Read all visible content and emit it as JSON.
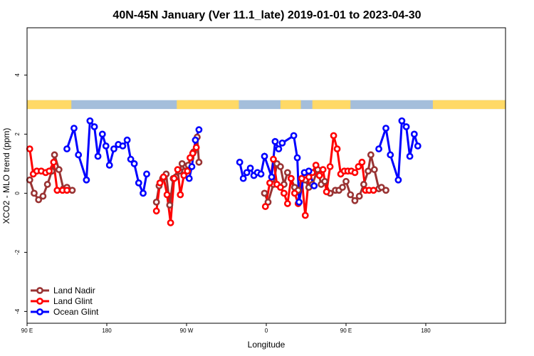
{
  "chart_data": {
    "type": "line",
    "title": "40N-45N January (Ver 11.1_late)   2019-01-01 to 2023-04-30",
    "xlabel": "Longitude",
    "ylabel": "XCO2 - MLO trend (ppm)",
    "xlim": [
      90,
      630
    ],
    "ylim": [
      -4.4,
      5.6
    ],
    "x_ticks": [
      {
        "value": 90,
        "label": "90 E"
      },
      {
        "value": 180,
        "label": "180"
      },
      {
        "value": 270,
        "label": "90 W"
      },
      {
        "value": 360,
        "label": "0"
      },
      {
        "value": 450,
        "label": "90 E"
      },
      {
        "value": 540,
        "label": "180"
      }
    ],
    "y_ticks": [
      -4,
      -2,
      0,
      2,
      4
    ],
    "grid": false,
    "legend_position": "bottom-left",
    "land_ocean_strip": {
      "y_range": [
        2.85,
        3.15
      ],
      "land_color": "#ffd966",
      "ocean_color": "#a4bedb",
      "land_segments": [
        [
          90,
          140
        ],
        [
          259,
          329
        ],
        [
          376,
          399
        ],
        [
          412,
          455
        ],
        [
          548,
          630
        ]
      ]
    },
    "series": [
      {
        "name": "Land Nadir",
        "color": "#993333",
        "points": [
          [
            93,
            0.45
          ],
          [
            98,
            0.0
          ],
          [
            103,
            -0.22
          ],
          [
            108,
            -0.1
          ],
          [
            113,
            0.3
          ],
          [
            118,
            0.75
          ],
          [
            121,
            1.3
          ],
          [
            126,
            0.8
          ],
          [
            131,
            0.15
          ],
          [
            135,
            0.2
          ],
          [
            141,
            0.1
          ],
          [
            236,
            -0.3
          ],
          [
            239,
            0.25
          ],
          [
            243,
            0.5
          ],
          [
            247,
            0.65
          ],
          [
            251,
            -0.4
          ],
          [
            255,
            0.5
          ],
          [
            258,
            0.55
          ],
          [
            262,
            0.75
          ],
          [
            265,
            1.0
          ],
          [
            268,
            0.75
          ],
          [
            272,
            0.95
          ],
          [
            275,
            1.2
          ],
          [
            278,
            1.4
          ],
          [
            282,
            1.9
          ],
          [
            284,
            1.05
          ],
          [
            358,
            0.0
          ],
          [
            362,
            -0.3
          ],
          [
            368,
            0.3
          ],
          [
            372,
            1.0
          ],
          [
            376,
            0.9
          ],
          [
            380,
            0.3
          ],
          [
            384,
            0.7
          ],
          [
            388,
            0.5
          ],
          [
            392,
            0.2
          ],
          [
            396,
            0.1
          ],
          [
            400,
            0.5
          ],
          [
            404,
            0.45
          ],
          [
            408,
            0.2
          ],
          [
            412,
            0.3
          ],
          [
            418,
            0.8
          ],
          [
            422,
            0.3
          ],
          [
            426,
            0.4
          ],
          [
            432,
            0.0
          ],
          [
            438,
            0.1
          ],
          [
            442,
            0.1
          ],
          [
            446,
            0.2
          ],
          [
            450,
            0.4
          ],
          [
            455,
            -0.05
          ],
          [
            460,
            -0.25
          ],
          [
            465,
            -0.1
          ],
          [
            470,
            0.3
          ],
          [
            475,
            0.75
          ],
          [
            478,
            1.3
          ],
          [
            482,
            0.8
          ],
          [
            487,
            0.15
          ],
          [
            490,
            0.2
          ],
          [
            495,
            0.1
          ]
        ]
      },
      {
        "name": "Land Glint",
        "color": "#ff0000",
        "points": [
          [
            93,
            1.5
          ],
          [
            97,
            0.65
          ],
          [
            101,
            0.75
          ],
          [
            106,
            0.75
          ],
          [
            111,
            0.7
          ],
          [
            115,
            0.75
          ],
          [
            120,
            1.05
          ],
          [
            124,
            0.1
          ],
          [
            130,
            0.1
          ],
          [
            135,
            0.1
          ],
          [
            236,
            -0.6
          ],
          [
            240,
            0.35
          ],
          [
            244,
            0.55
          ],
          [
            248,
            -0.05
          ],
          [
            252,
            -1.0
          ],
          [
            256,
            0.5
          ],
          [
            260,
            0.8
          ],
          [
            263,
            -0.05
          ],
          [
            267,
            0.6
          ],
          [
            271,
            0.75
          ],
          [
            274,
            1.2
          ],
          [
            277,
            1.35
          ],
          [
            281,
            1.55
          ],
          [
            359,
            -0.45
          ],
          [
            364,
            0.35
          ],
          [
            368,
            1.15
          ],
          [
            372,
            0.3
          ],
          [
            376,
            0.2
          ],
          [
            380,
            0.0
          ],
          [
            384,
            -0.35
          ],
          [
            388,
            0.5
          ],
          [
            392,
            0.0
          ],
          [
            396,
            -0.35
          ],
          [
            400,
            0.5
          ],
          [
            404,
            -0.75
          ],
          [
            408,
            0.55
          ],
          [
            412,
            0.7
          ],
          [
            416,
            0.95
          ],
          [
            420,
            0.6
          ],
          [
            424,
            0.8
          ],
          [
            428,
            0.05
          ],
          [
            432,
            0.9
          ],
          [
            436,
            1.95
          ],
          [
            440,
            1.5
          ],
          [
            444,
            0.65
          ],
          [
            448,
            0.75
          ],
          [
            452,
            0.75
          ],
          [
            456,
            0.75
          ],
          [
            460,
            0.7
          ],
          [
            464,
            0.9
          ],
          [
            468,
            1.05
          ],
          [
            472,
            0.1
          ],
          [
            476,
            0.1
          ],
          [
            481,
            0.1
          ]
        ]
      },
      {
        "name": "Ocean Glint",
        "color": "#0000ff",
        "points": [
          [
            135,
            1.5
          ],
          [
            143,
            2.2
          ],
          [
            148,
            1.3
          ],
          [
            157,
            0.45
          ],
          [
            161,
            2.45
          ],
          [
            166,
            2.25
          ],
          [
            170,
            1.25
          ],
          [
            175,
            2.0
          ],
          [
            179,
            1.6
          ],
          [
            183,
            0.95
          ],
          [
            188,
            1.5
          ],
          [
            193,
            1.65
          ],
          [
            198,
            1.6
          ],
          [
            203,
            1.8
          ],
          [
            207,
            1.15
          ],
          [
            211,
            1.0
          ],
          [
            216,
            0.35
          ],
          [
            221,
            0.0
          ],
          [
            225,
            0.65
          ],
          [
            273,
            0.5
          ],
          [
            276,
            0.9
          ],
          [
            280,
            1.8
          ],
          [
            284,
            2.15
          ],
          [
            330,
            1.05
          ],
          [
            334,
            0.5
          ],
          [
            338,
            0.7
          ],
          [
            342,
            0.85
          ],
          [
            346,
            0.6
          ],
          [
            350,
            0.7
          ],
          [
            354,
            0.65
          ],
          [
            358,
            1.25
          ],
          [
            366,
            0.55
          ],
          [
            370,
            1.75
          ],
          [
            374,
            1.5
          ],
          [
            378,
            1.7
          ],
          [
            391,
            1.95
          ],
          [
            395,
            1.2
          ],
          [
            397,
            -0.3
          ],
          [
            403,
            0.7
          ],
          [
            408,
            0.75
          ],
          [
            414,
            0.25
          ],
          [
            487,
            1.5
          ],
          [
            495,
            2.2
          ],
          [
            500,
            1.3
          ],
          [
            509,
            0.45
          ],
          [
            513,
            2.45
          ],
          [
            518,
            2.25
          ],
          [
            522,
            1.25
          ],
          [
            527,
            2.0
          ],
          [
            531,
            1.6
          ]
        ]
      }
    ]
  }
}
